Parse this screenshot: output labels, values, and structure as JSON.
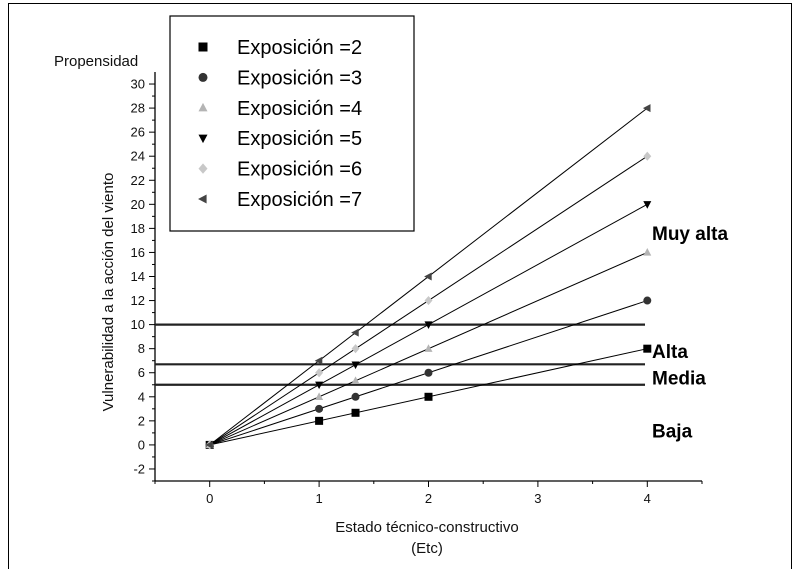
{
  "chart_data": {
    "type": "scatter",
    "title": "",
    "xlabel": "Estado técnico-constructivo",
    "xlabel2": "(Etc)",
    "ylabel": "Vulnerabilidad a la acción del viento",
    "ylabel_top": "Propensidad",
    "xlim": [
      -0.5,
      4.5
    ],
    "ylim": [
      -3,
      31
    ],
    "xticks": [
      0,
      1,
      2,
      3,
      4
    ],
    "yticks": [
      -2,
      0,
      2,
      4,
      6,
      8,
      10,
      12,
      14,
      16,
      18,
      20,
      22,
      24,
      26,
      28,
      30
    ],
    "x": [
      0,
      1,
      1.333,
      2,
      4
    ],
    "series": [
      {
        "name": "Exposición =2",
        "marker": "square",
        "color": "#000000",
        "values": [
          0,
          2,
          2.67,
          4,
          8
        ]
      },
      {
        "name": "Exposición =3",
        "marker": "circle",
        "color": "#333333",
        "values": [
          0,
          3,
          4,
          6,
          12
        ]
      },
      {
        "name": "Exposición =4",
        "marker": "triangle-up",
        "color": "#b4b4b4",
        "values": [
          0,
          4,
          5.33,
          8,
          16
        ]
      },
      {
        "name": "Exposición =5",
        "marker": "triangle-down",
        "color": "#000000",
        "values": [
          0,
          5,
          6.67,
          10,
          20
        ]
      },
      {
        "name": "Exposición =6",
        "marker": "diamond",
        "color": "#c8c8c8",
        "values": [
          0,
          6,
          8,
          12,
          24
        ]
      },
      {
        "name": "Exposición =7",
        "marker": "triangle-left",
        "color": "#444444",
        "values": [
          0,
          7,
          9.33,
          14,
          28
        ]
      }
    ],
    "thresholds": [
      5,
      6.7,
      10
    ],
    "zones": [
      {
        "label": "Muy alta",
        "y": 17.6
      },
      {
        "label": "Alta",
        "y": 7.8
      },
      {
        "label": "Media",
        "y": 5.6
      },
      {
        "label": "Baja",
        "y": 1.2
      }
    ],
    "legend_position": "top-left"
  }
}
